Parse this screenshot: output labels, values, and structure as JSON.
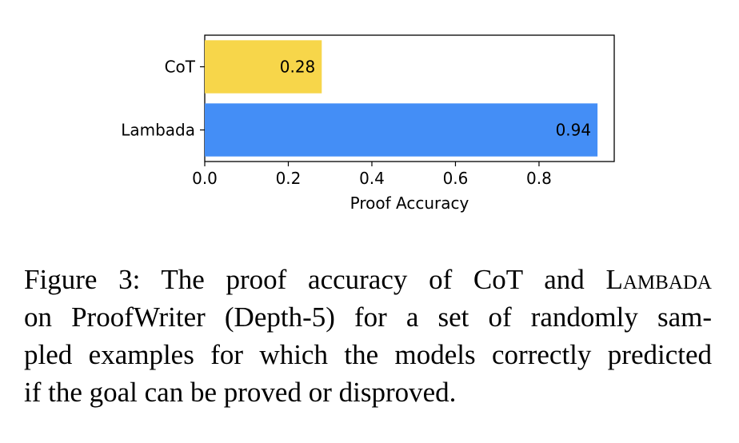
{
  "chart_data": {
    "type": "bar",
    "orientation": "horizontal",
    "categories": [
      "CoT",
      "Lambada"
    ],
    "values": [
      0.28,
      0.94
    ],
    "value_labels": [
      "0.28",
      "0.94"
    ],
    "colors": [
      "#F7D64A",
      "#448EF6"
    ],
    "xlabel": "Proof Accuracy",
    "xlim": [
      0,
      0.98
    ],
    "xticks": [
      "0.0",
      "0.2",
      "0.4",
      "0.6",
      "0.8"
    ],
    "xtick_values": [
      0.0,
      0.2,
      0.4,
      0.6,
      0.8
    ]
  },
  "caption": {
    "prefix": "Figure 3:",
    "line1_text": "The proof accuracy of CoT and L",
    "line1_smallcaps": "ambada",
    "line2": "on ProofWriter (Depth-5) for a set of randomly sam-",
    "line3": "pled examples for which the models correctly predicted",
    "line4": "if the goal can be proved or disproved."
  }
}
